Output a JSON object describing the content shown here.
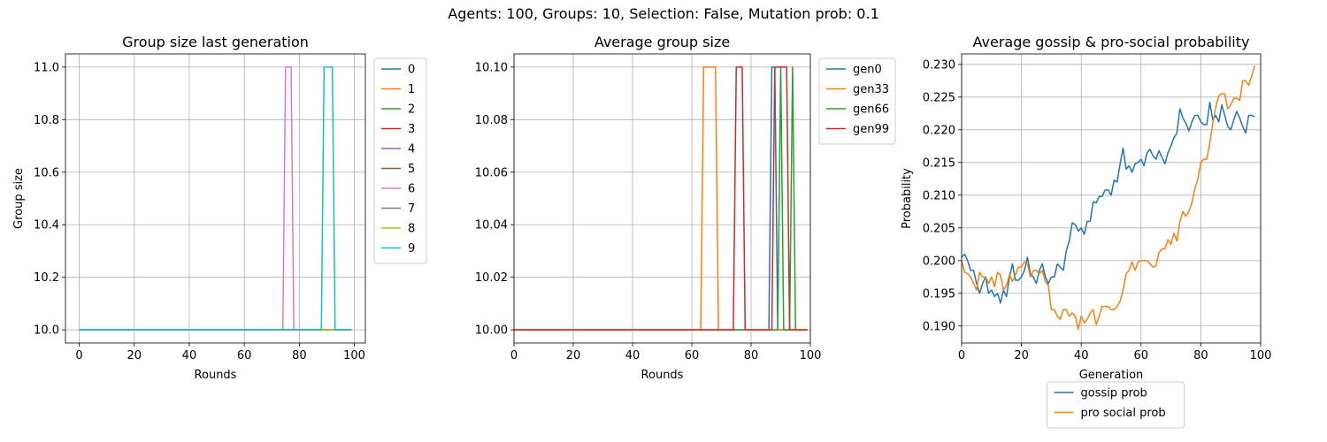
{
  "figure": {
    "suptitle": "Agents: 100, Groups: 10, Selection: False, Mutation prob: 0.1"
  },
  "colors": [
    "#1f77b4",
    "#ff7f0e",
    "#2ca02c",
    "#d62728",
    "#9467bd",
    "#8c564b",
    "#e377c2",
    "#7f7f7f",
    "#bcbd22",
    "#17becf"
  ],
  "chart_data": [
    {
      "type": "line",
      "title": "Group size last generation",
      "xlabel": "Rounds",
      "ylabel": "Group size",
      "xlim": [
        -5,
        104
      ],
      "ylim": [
        9.95,
        11.05
      ],
      "xticks": [
        0,
        20,
        40,
        60,
        80,
        100
      ],
      "yticks": [
        10.0,
        10.2,
        10.4,
        10.6,
        10.8,
        11.0
      ],
      "ytick_labels": [
        "10.0",
        "10.2",
        "10.4",
        "10.6",
        "10.8",
        "11.0"
      ],
      "grid": true,
      "legend_position": "outside-upper-right",
      "x_range": [
        0,
        99
      ],
      "baseline": 10.0,
      "series": [
        {
          "name": "0",
          "pulses": []
        },
        {
          "name": "1",
          "pulses": []
        },
        {
          "name": "2",
          "pulses": []
        },
        {
          "name": "3",
          "pulses": []
        },
        {
          "name": "4",
          "pulses": []
        },
        {
          "name": "5",
          "pulses": []
        },
        {
          "name": "6",
          "pulses": [
            [
              74,
              75,
              77,
              78,
              11.0
            ]
          ]
        },
        {
          "name": "7",
          "pulses": []
        },
        {
          "name": "8",
          "pulses": []
        },
        {
          "name": "9",
          "pulses": [
            [
              88,
              89,
              92,
              93,
              11.0
            ]
          ]
        }
      ]
    },
    {
      "type": "line",
      "title": "Average group size",
      "xlabel": "Rounds",
      "ylabel": "",
      "xlim": [
        0,
        100
      ],
      "ylim": [
        9.995,
        10.105
      ],
      "xticks": [
        0,
        20,
        40,
        60,
        80,
        100
      ],
      "yticks": [
        10.0,
        10.02,
        10.04,
        10.06,
        10.08,
        10.1
      ],
      "ytick_labels": [
        "10.00",
        "10.02",
        "10.04",
        "10.06",
        "10.08",
        "10.10"
      ],
      "grid": true,
      "legend_position": "outside-upper-right",
      "x_range": [
        0,
        99
      ],
      "baseline": 10.0,
      "series": [
        {
          "name": "gen0",
          "pulses": [
            [
              86,
              87,
              88,
              89,
              10.1
            ]
          ]
        },
        {
          "name": "gen33",
          "pulses": [
            [
              63,
              64,
              68,
              69,
              10.1
            ]
          ]
        },
        {
          "name": "gen66",
          "pulses": [
            [
              89,
              90,
              90,
              91,
              10.1
            ],
            [
              93,
              94,
              94,
              95,
              10.1
            ]
          ]
        },
        {
          "name": "gen99",
          "pulses": [
            [
              74,
              75,
              77,
              78,
              10.1
            ],
            [
              87,
              88,
              92,
              93,
              10.1
            ]
          ]
        }
      ]
    },
    {
      "type": "line",
      "title": "Average gossip & pro-social probability",
      "xlabel": "Generation",
      "ylabel": "Probability",
      "xlim": [
        0,
        100
      ],
      "ylim": [
        0.1874,
        0.2316
      ],
      "xticks": [
        0,
        20,
        40,
        60,
        80,
        100
      ],
      "yticks": [
        0.19,
        0.195,
        0.2,
        0.205,
        0.21,
        0.215,
        0.22,
        0.225,
        0.23
      ],
      "ytick_labels": [
        "0.190",
        "0.195",
        "0.200",
        "0.205",
        "0.210",
        "0.215",
        "0.220",
        "0.225",
        "0.230"
      ],
      "grid": true,
      "legend_position": "below",
      "series": [
        {
          "name": "gossip prob",
          "values": [
            0.2005,
            0.201,
            0.2,
            0.1985,
            0.1985,
            0.1965,
            0.195,
            0.1965,
            0.1975,
            0.195,
            0.1955,
            0.1945,
            0.195,
            0.1935,
            0.1955,
            0.1945,
            0.1975,
            0.1995,
            0.197,
            0.197,
            0.1975,
            0.1985,
            0.2005,
            0.198,
            0.1975,
            0.1965,
            0.1985,
            0.1995,
            0.1975,
            0.1965,
            0.1975,
            0.1975,
            0.1995,
            0.199,
            0.1985,
            0.2015,
            0.203,
            0.2058,
            0.2055,
            0.2045,
            0.205,
            0.204,
            0.206,
            0.206,
            0.209,
            0.2088,
            0.2098,
            0.2098,
            0.2108,
            0.2108,
            0.21,
            0.2123,
            0.212,
            0.2148,
            0.2172,
            0.214,
            0.2145,
            0.2135,
            0.2148,
            0.215,
            0.2155,
            0.2145,
            0.2165,
            0.217,
            0.216,
            0.2155,
            0.2168,
            0.2158,
            0.2148,
            0.2165,
            0.2175,
            0.2188,
            0.2195,
            0.2232,
            0.2218,
            0.221,
            0.2198,
            0.2212,
            0.2222,
            0.2222,
            0.2212,
            0.2208,
            0.2208,
            0.2242,
            0.2215,
            0.2222,
            0.2212,
            0.2238,
            0.2222,
            0.2205,
            0.22,
            0.2215,
            0.2228,
            0.2218,
            0.2205,
            0.2195,
            0.2222,
            0.2222,
            0.222
          ]
        },
        {
          "name": "pro social prob",
          "values": [
            0.2,
            0.1982,
            0.198,
            0.1975,
            0.1965,
            0.1955,
            0.1982,
            0.1975,
            0.1975,
            0.1965,
            0.1975,
            0.196,
            0.1982,
            0.1978,
            0.1955,
            0.1962,
            0.1978,
            0.1968,
            0.1978,
            0.199,
            0.199,
            0.1998,
            0.1995,
            0.1975,
            0.1985,
            0.1985,
            0.198,
            0.1985,
            0.1968,
            0.1962,
            0.1925,
            0.1925,
            0.1915,
            0.191,
            0.1925,
            0.1925,
            0.1915,
            0.192,
            0.1915,
            0.1895,
            0.1915,
            0.1905,
            0.191,
            0.192,
            0.1925,
            0.1902,
            0.1915,
            0.193,
            0.193,
            0.193,
            0.1925,
            0.1925,
            0.193,
            0.1938,
            0.1955,
            0.198,
            0.1985,
            0.1998,
            0.1985,
            0.1998,
            0.2,
            0.2,
            0.2,
            0.1995,
            0.199,
            0.1992,
            0.2012,
            0.2018,
            0.2018,
            0.2032,
            0.2025,
            0.2042,
            0.203,
            0.206,
            0.2075,
            0.2068,
            0.2075,
            0.2088,
            0.211,
            0.2125,
            0.215,
            0.2155,
            0.2155,
            0.218,
            0.221,
            0.2235,
            0.2252,
            0.2255,
            0.2255,
            0.2232,
            0.2238,
            0.2248,
            0.2248,
            0.2245,
            0.2275,
            0.2275,
            0.2268,
            0.2282,
            0.2298
          ]
        }
      ]
    }
  ]
}
